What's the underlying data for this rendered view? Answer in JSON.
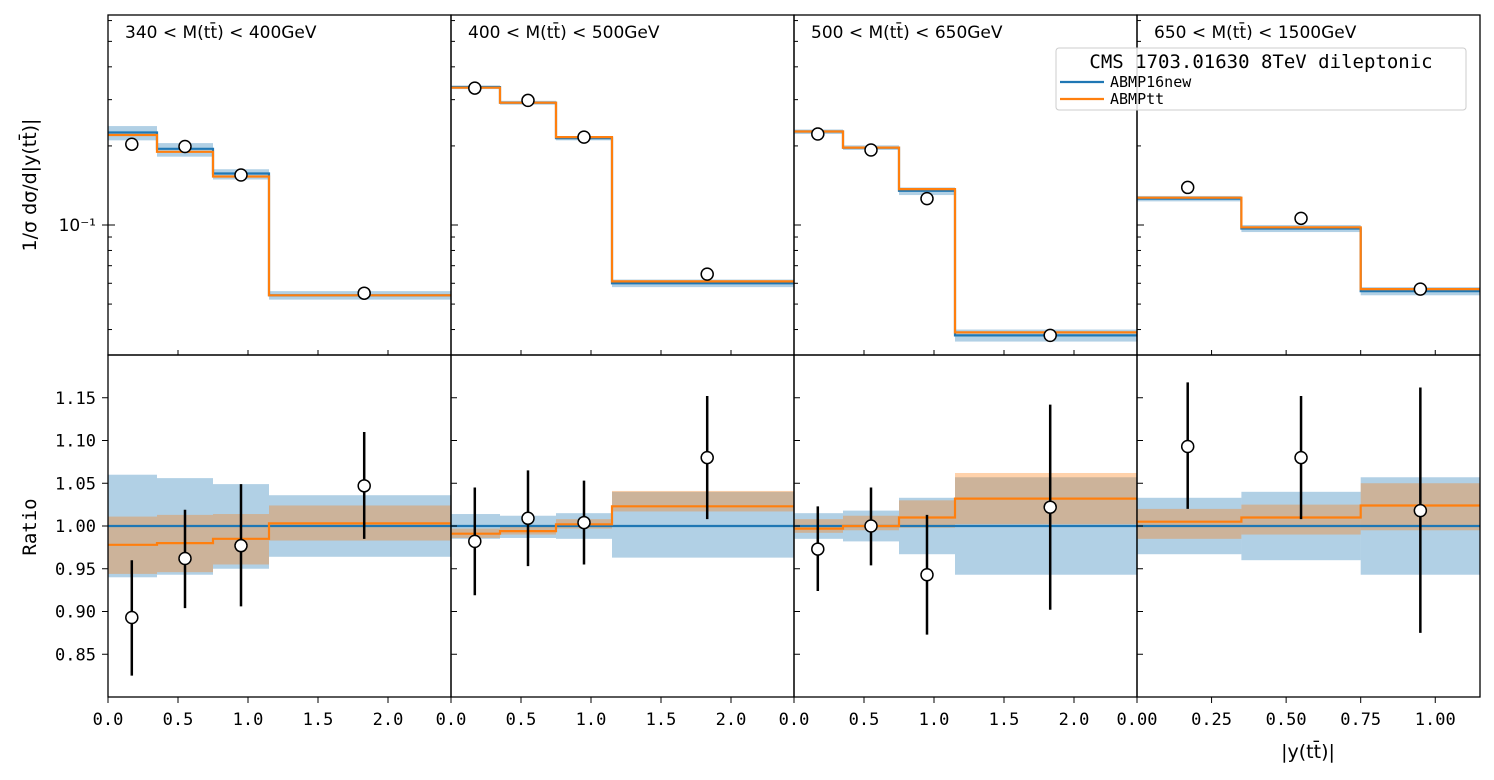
{
  "chart_data": {
    "type": "line",
    "title": "",
    "legend": {
      "title": "CMS 1703.01630 8TeV dileptonic",
      "location": "top-right",
      "entries": [
        {
          "name": "ABMP16new",
          "color": "#1f77b4"
        },
        {
          "name": "ABMPtt",
          "color": "#ff7f0e"
        }
      ]
    },
    "top_ylabel": "1/σ  dσ/d|y(tt̄)|",
    "top_yscale": "log",
    "top_tick_label": "10⁻¹",
    "bottom_ylabel": "Ratio",
    "bottom_ylim": [
      0.8,
      1.2
    ],
    "bottom_yticks": [
      "0.85",
      "0.90",
      "0.95",
      "1.00",
      "1.05",
      "1.10",
      "1.15"
    ],
    "xlabel": "|y(tt̄)|",
    "panels": [
      {
        "label": "340 < M(tt̄) < 400GeV",
        "xlim": [
          0,
          2.45
        ],
        "xticks": [
          "0.0",
          "0.5",
          "1.0",
          "1.5",
          "2.0"
        ],
        "bin_edges": [
          0,
          0.35,
          0.75,
          1.15,
          2.5
        ],
        "top": {
          "abmp16new": [
            0.225,
            0.195,
            0.157,
            0.054
          ],
          "abmptt": [
            0.22,
            0.19,
            0.153,
            0.054
          ],
          "band16_lo": [
            0.21,
            0.182,
            0.149,
            0.052
          ],
          "band16_hi": [
            0.238,
            0.205,
            0.163,
            0.056
          ],
          "data_x": [
            0.17,
            0.55,
            0.95,
            1.83
          ],
          "data_y": [
            0.203,
            0.199,
            0.155,
            0.055
          ]
        },
        "ratio": {
          "abmptt": [
            0.978,
            0.98,
            0.985,
            1.003
          ],
          "band16_lo": [
            0.94,
            0.943,
            0.95,
            0.964
          ],
          "band16_hi": [
            1.06,
            1.056,
            1.049,
            1.036
          ],
          "bandtt_lo": [
            0.944,
            0.946,
            0.955,
            0.983
          ],
          "bandtt_hi": [
            1.011,
            1.013,
            1.014,
            1.024
          ],
          "data_y": [
            0.893,
            0.962,
            0.977,
            1.047
          ],
          "err_lo": [
            0.825,
            0.904,
            0.906,
            0.985
          ],
          "err_hi": [
            0.96,
            1.019,
            1.049,
            1.11
          ]
        }
      },
      {
        "label": "400 < M(tt̄) < 500GeV",
        "xlim": [
          0,
          2.45
        ],
        "xticks": [
          "0.0",
          "0.5",
          "1.0",
          "1.5",
          "2.0"
        ],
        "bin_edges": [
          0,
          0.35,
          0.75,
          1.15,
          2.5
        ],
        "top": {
          "abmp16new": [
            0.335,
            0.292,
            0.214,
            0.06
          ],
          "abmptt": [
            0.333,
            0.292,
            0.216,
            0.061
          ],
          "band16_lo": [
            0.329,
            0.287,
            0.21,
            0.058
          ],
          "band16_hi": [
            0.34,
            0.297,
            0.218,
            0.062
          ],
          "data_x": [
            0.17,
            0.55,
            0.95,
            1.83
          ],
          "data_y": [
            0.332,
            0.298,
            0.216,
            0.065
          ]
        },
        "ratio": {
          "abmptt": [
            0.991,
            0.994,
            1.002,
            1.023
          ],
          "band16_lo": [
            0.985,
            0.986,
            0.985,
            0.963
          ],
          "band16_hi": [
            1.014,
            1.012,
            1.015,
            1.04
          ],
          "bandtt_lo": [
            0.986,
            0.99,
            0.997,
            1.017
          ],
          "bandtt_hi": [
            0.997,
            0.999,
            1.008,
            1.041
          ],
          "data_y": [
            0.982,
            1.009,
            1.004,
            1.08
          ],
          "err_lo": [
            0.919,
            0.953,
            0.955,
            1.008
          ],
          "err_hi": [
            1.045,
            1.065,
            1.053,
            1.152
          ]
        }
      },
      {
        "label": "500 < M(tt̄) < 650GeV",
        "xlim": [
          0,
          2.45
        ],
        "xticks": [
          "0.0",
          "0.5",
          "1.0",
          "1.5",
          "2.0"
        ],
        "bin_edges": [
          0,
          0.35,
          0.75,
          1.15,
          2.5
        ],
        "top": {
          "abmp16new": [
            0.227,
            0.197,
            0.135,
            0.038
          ],
          "abmptt": [
            0.227,
            0.197,
            0.137,
            0.039
          ],
          "band16_lo": [
            0.222,
            0.193,
            0.13,
            0.036
          ],
          "band16_hi": [
            0.231,
            0.201,
            0.139,
            0.04
          ],
          "data_x": [
            0.17,
            0.55,
            0.95,
            1.83
          ],
          "data_y": [
            0.222,
            0.193,
            0.126,
            0.038
          ]
        },
        "ratio": {
          "abmptt": [
            0.997,
            1.0,
            1.01,
            1.032
          ],
          "band16_lo": [
            0.985,
            0.982,
            0.967,
            0.943
          ],
          "band16_hi": [
            1.015,
            1.018,
            1.033,
            1.057
          ],
          "bandtt_lo": [
            0.992,
            0.995,
            0.998,
            1.002
          ],
          "bandtt_hi": [
            1.008,
            1.012,
            1.03,
            1.062
          ],
          "data_y": [
            0.973,
            1.0,
            0.943,
            1.022
          ],
          "err_lo": [
            0.924,
            0.954,
            0.873,
            0.902
          ],
          "err_hi": [
            1.023,
            1.045,
            1.013,
            1.142
          ]
        }
      },
      {
        "label": "650 < M(tt̄) < 1500GeV",
        "xlim": [
          0,
          1.15
        ],
        "xticks": [
          "0.00",
          "0.25",
          "0.50",
          "0.75",
          "1.00"
        ],
        "bin_edges": [
          0,
          0.35,
          0.75,
          1.2
        ],
        "top": {
          "abmp16new": [
            0.126,
            0.097,
            0.056
          ],
          "abmptt": [
            0.127,
            0.098,
            0.057
          ],
          "band16_lo": [
            0.123,
            0.094,
            0.054
          ],
          "band16_hi": [
            0.129,
            0.1,
            0.058
          ],
          "data_x": [
            0.17,
            0.55,
            0.95
          ],
          "data_y": [
            0.139,
            0.106,
            0.057
          ]
        },
        "ratio": {
          "abmptt": [
            1.005,
            1.01,
            1.024
          ],
          "band16_lo": [
            0.967,
            0.96,
            0.943
          ],
          "band16_hi": [
            1.033,
            1.04,
            1.057
          ],
          "bandtt_lo": [
            0.985,
            0.99,
            0.995
          ],
          "bandtt_hi": [
            1.02,
            1.025,
            1.05
          ],
          "data_y": [
            1.093,
            1.08,
            1.018
          ],
          "err_lo": [
            1.02,
            1.008,
            0.875
          ],
          "err_hi": [
            1.168,
            1.152,
            1.162
          ]
        }
      }
    ]
  }
}
